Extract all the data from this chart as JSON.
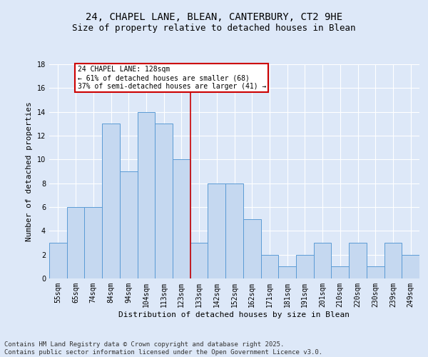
{
  "title1": "24, CHAPEL LANE, BLEAN, CANTERBURY, CT2 9HE",
  "title2": "Size of property relative to detached houses in Blean",
  "xlabel": "Distribution of detached houses by size in Blean",
  "ylabel": "Number of detached properties",
  "categories": [
    "55sqm",
    "65sqm",
    "74sqm",
    "84sqm",
    "94sqm",
    "104sqm",
    "113sqm",
    "123sqm",
    "133sqm",
    "142sqm",
    "152sqm",
    "162sqm",
    "171sqm",
    "181sqm",
    "191sqm",
    "201sqm",
    "210sqm",
    "220sqm",
    "230sqm",
    "239sqm",
    "249sqm"
  ],
  "values": [
    3,
    6,
    6,
    13,
    9,
    14,
    13,
    10,
    3,
    8,
    8,
    5,
    2,
    1,
    2,
    3,
    1,
    3,
    1,
    3,
    2
  ],
  "bar_color": "#c5d8f0",
  "bar_edge_color": "#5b9bd5",
  "reference_line_x": 7.5,
  "reference_line_color": "#cc0000",
  "annotation_text": "24 CHAPEL LANE: 128sqm\n← 61% of detached houses are smaller (68)\n37% of semi-detached houses are larger (41) →",
  "annotation_box_color": "#ffffff",
  "annotation_box_edge": "#cc0000",
  "ylim": [
    0,
    18
  ],
  "yticks": [
    0,
    2,
    4,
    6,
    8,
    10,
    12,
    14,
    16,
    18
  ],
  "footer": "Contains HM Land Registry data © Crown copyright and database right 2025.\nContains public sector information licensed under the Open Government Licence v3.0.",
  "bg_color": "#dde8f8",
  "grid_color": "#ffffff",
  "title_fontsize": 10,
  "subtitle_fontsize": 9,
  "axis_label_fontsize": 8,
  "tick_fontsize": 7,
  "footer_fontsize": 6.5,
  "ann_fontsize": 7
}
